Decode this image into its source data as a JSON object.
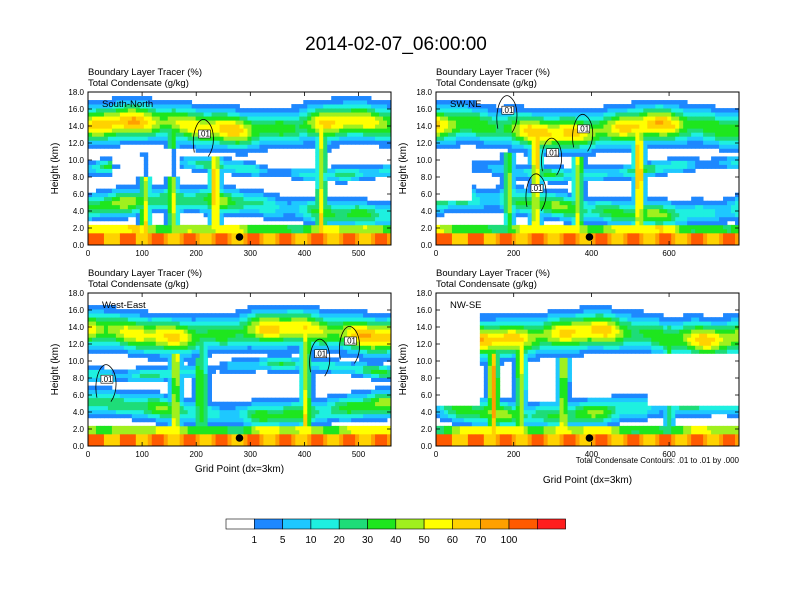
{
  "title": "2014-02-07_06:00:00",
  "panel_title_line1": "Boundary Layer Tracer   (%)",
  "panel_title_line2": "Total Condensate   (g/kg)",
  "contour_note": "Total Condensate Contours: .01 to .01 by .000",
  "colorbar": {
    "colors": [
      "#ffffff",
      "#1e88ff",
      "#1ec8ff",
      "#1ef0e0",
      "#1edc78",
      "#1ee61e",
      "#a0f01e",
      "#ffff00",
      "#ffd200",
      "#ffa000",
      "#ff5a00",
      "#ff1e1e"
    ],
    "labels": [
      "1",
      "5",
      "10",
      "20",
      "30",
      "40",
      "50",
      "60",
      "70",
      "100"
    ]
  },
  "chart_data": [
    {
      "type": "heatmap",
      "label": "South-North",
      "xlabel": "",
      "ylabel": "Height (km)",
      "xlim": [
        0,
        560
      ],
      "ylim": [
        0,
        18
      ],
      "xticks": [
        "0",
        "100",
        "200",
        "300",
        "400",
        "500"
      ],
      "yticks": [
        "0.0",
        "2.0",
        "4.0",
        "6.0",
        "8.0",
        "10.0",
        "12.0",
        "14.0",
        "16.0",
        "18.0"
      ],
      "marker_x": 280,
      "contour_labels": [
        {
          "x": 215,
          "y": 13.0,
          "text": ".01"
        }
      ]
    },
    {
      "type": "heatmap",
      "label": "SW-NE",
      "xlabel": "",
      "ylabel": "Height (km)",
      "xlim": [
        0,
        780
      ],
      "ylim": [
        0,
        18
      ],
      "xticks": [
        "0",
        "200",
        "400",
        "600"
      ],
      "yticks": [
        "0.0",
        "2.0",
        "4.0",
        "6.0",
        "8.0",
        "10.0",
        "12.0",
        "14.0",
        "16.0",
        "18.0"
      ],
      "marker_x": 395,
      "contour_labels": [
        {
          "x": 185,
          "y": 15.8,
          "text": ".01"
        },
        {
          "x": 380,
          "y": 13.6,
          "text": ".01"
        },
        {
          "x": 300,
          "y": 10.8,
          "text": ".01"
        },
        {
          "x": 260,
          "y": 6.6,
          "text": ".01"
        }
      ]
    },
    {
      "type": "heatmap",
      "label": "West-East",
      "xlabel": "Grid Point (dx=3km)",
      "ylabel": "Height (km)",
      "xlim": [
        0,
        560
      ],
      "ylim": [
        0,
        18
      ],
      "xticks": [
        "0",
        "100",
        "200",
        "300",
        "400",
        "500"
      ],
      "yticks": [
        "0.0",
        "2.0",
        "4.0",
        "6.0",
        "8.0",
        "10.0",
        "12.0",
        "14.0",
        "16.0",
        "18.0"
      ],
      "marker_x": 280,
      "contour_labels": [
        {
          "x": 430,
          "y": 10.8,
          "text": ".01"
        },
        {
          "x": 485,
          "y": 12.3,
          "text": ".01"
        },
        {
          "x": 35,
          "y": 7.8,
          "text": ".01"
        }
      ]
    },
    {
      "type": "heatmap",
      "label": "NW-SE",
      "xlabel": "Grid Point (dx=3km)",
      "ylabel": "Height (km)",
      "xlim": [
        0,
        780
      ],
      "ylim": [
        0,
        18
      ],
      "xticks": [
        "0",
        "200",
        "400",
        "600"
      ],
      "yticks": [
        "0.0",
        "2.0",
        "4.0",
        "6.0",
        "8.0",
        "10.0",
        "12.0",
        "14.0",
        "16.0",
        "18.0"
      ],
      "marker_x": 395,
      "contour_labels": []
    }
  ]
}
